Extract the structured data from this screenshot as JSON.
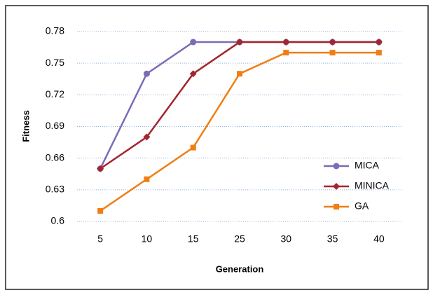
{
  "chart_data": {
    "type": "line",
    "x_label": "Generation",
    "y_label": "Fitness",
    "categories": [
      "5",
      "10",
      "15",
      "25",
      "30",
      "35",
      "40"
    ],
    "series": [
      {
        "name": "MICA",
        "color": "#7e6bb5",
        "marker": "circle",
        "values": [
          0.65,
          0.74,
          0.77,
          0.77,
          0.77,
          0.77,
          0.77
        ]
      },
      {
        "name": "MINICA",
        "color": "#a3262c",
        "marker": "diamond",
        "values": [
          0.65,
          0.68,
          0.74,
          0.77,
          0.77,
          0.77,
          0.77
        ]
      },
      {
        "name": "GA",
        "color": "#f07e12",
        "marker": "square",
        "values": [
          0.61,
          0.64,
          0.67,
          0.74,
          0.76,
          0.76,
          0.76
        ]
      }
    ],
    "ylim": [
      0.6,
      0.78
    ],
    "yticks": [
      0.6,
      0.63,
      0.66,
      0.69,
      0.72,
      0.75,
      0.78
    ],
    "grid": true,
    "legend": "right"
  }
}
